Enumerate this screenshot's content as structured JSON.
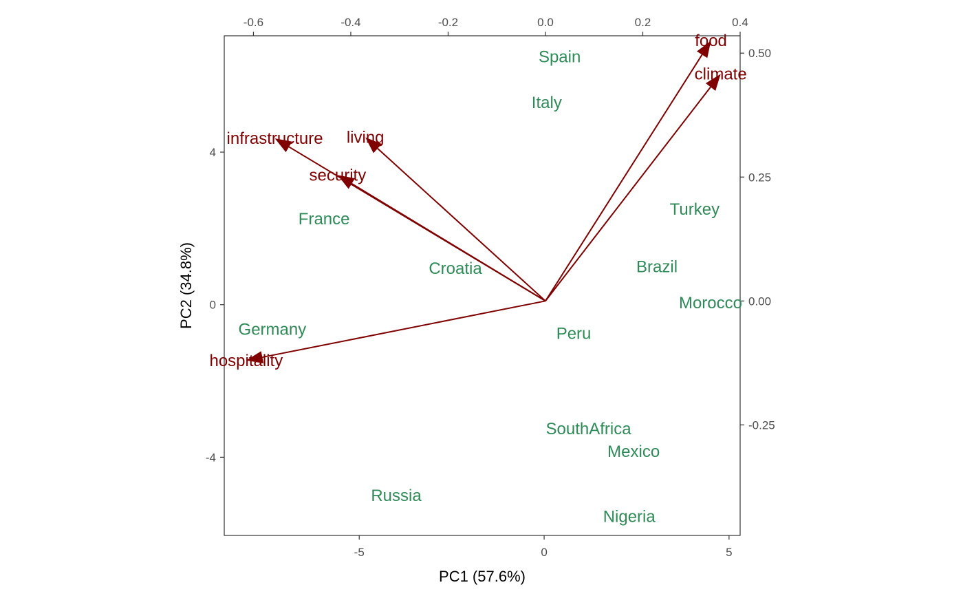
{
  "chart_data": {
    "type": "scatter",
    "subtype": "pca-biplot",
    "title": "",
    "xlabel": "PC1 (57.6%)",
    "ylabel": "PC2 (34.8%)",
    "xlim": [
      -8.65,
      5.3
    ],
    "ylim": [
      -6.05,
      7.05
    ],
    "x_ticks": [
      {
        "value": -5,
        "label": "-5"
      },
      {
        "value": 0,
        "label": "0"
      },
      {
        "value": 5,
        "label": "5"
      }
    ],
    "y_ticks": [
      {
        "value": -4,
        "label": "-4"
      },
      {
        "value": 0,
        "label": "0"
      },
      {
        "value": 4,
        "label": "4"
      }
    ],
    "top_axis": {
      "lim": [
        -0.66,
        0.4
      ],
      "ticks": [
        {
          "value": -0.6,
          "label": "-0.6"
        },
        {
          "value": -0.4,
          "label": "-0.4"
        },
        {
          "value": -0.2,
          "label": "-0.2"
        },
        {
          "value": 0.0,
          "label": "0.0"
        },
        {
          "value": 0.2,
          "label": "0.2"
        },
        {
          "value": 0.4,
          "label": "0.4"
        }
      ]
    },
    "right_axis": {
      "lim": [
        -0.473,
        0.535
      ],
      "ticks": [
        {
          "value": 0.5,
          "label": "0.50"
        },
        {
          "value": 0.25,
          "label": "0.25"
        },
        {
          "value": 0.0,
          "label": "0.00"
        },
        {
          "value": -0.25,
          "label": "-0.25"
        }
      ]
    },
    "observations": [
      {
        "label": "Spain",
        "x": 0.42,
        "y": 6.5
      },
      {
        "label": "Italy",
        "x": 0.07,
        "y": 5.3
      },
      {
        "label": "Turkey",
        "x": 4.07,
        "y": 2.5
      },
      {
        "label": "France",
        "x": -5.95,
        "y": 2.25
      },
      {
        "label": "Croatia",
        "x": -2.4,
        "y": 0.95
      },
      {
        "label": "Brazil",
        "x": 3.05,
        "y": 1.0
      },
      {
        "label": "Morocco",
        "x": 4.5,
        "y": 0.05
      },
      {
        "label": "Germany",
        "x": -7.35,
        "y": -0.65
      },
      {
        "label": "Peru",
        "x": 0.8,
        "y": -0.75
      },
      {
        "label": "SouthAfrica",
        "x": 1.2,
        "y": -3.25
      },
      {
        "label": "Mexico",
        "x": 2.42,
        "y": -3.85
      },
      {
        "label": "Russia",
        "x": -4.0,
        "y": -5.0
      },
      {
        "label": "Nigeria",
        "x": 2.3,
        "y": -5.55
      }
    ],
    "loadings": [
      {
        "label": "food",
        "x": 0.34,
        "y": 0.525
      },
      {
        "label": "climate",
        "x": 0.36,
        "y": 0.458
      },
      {
        "label": "infrastructure",
        "x": -0.556,
        "y": 0.328
      },
      {
        "label": "living",
        "x": -0.37,
        "y": 0.33
      },
      {
        "label": "security",
        "x": -0.427,
        "y": 0.254
      },
      {
        "label": "hospitality",
        "x": -0.615,
        "y": -0.12
      }
    ],
    "colors": {
      "observations": "#2e8b57",
      "loadings": "#800000",
      "axis": "#333333",
      "tick_text": "#4d4d4d"
    },
    "grid": false,
    "legend": "none"
  }
}
